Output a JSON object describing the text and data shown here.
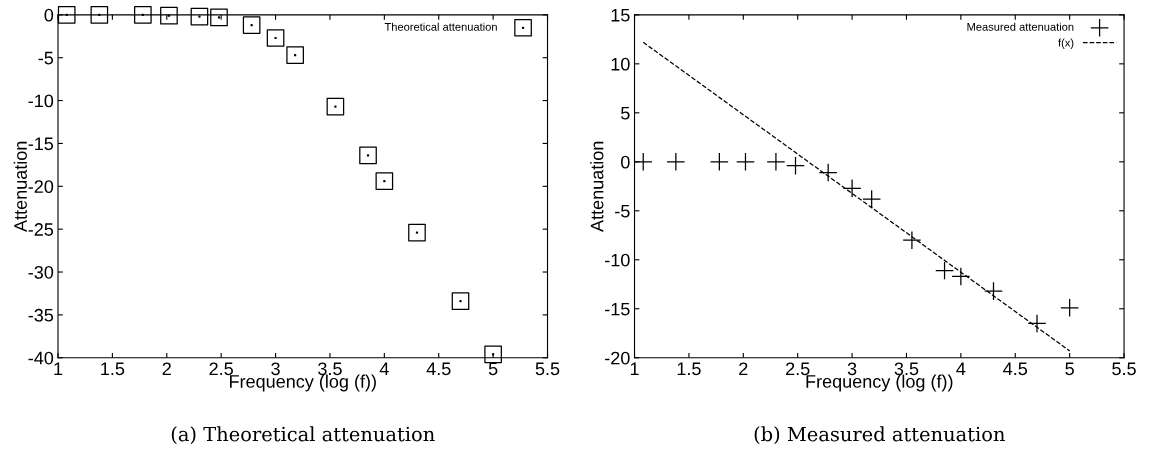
{
  "chart_data": [
    {
      "type": "scatter",
      "xlabel": "Frequency (log (f))",
      "ylabel": "Attenuation",
      "annotations": [
        "(a) Theoretical attenuation"
      ],
      "x": [
        1.08,
        1.38,
        1.78,
        2.02,
        2.3,
        2.48,
        2.78,
        3.0,
        3.18,
        3.55,
        3.85,
        4.0,
        4.3,
        4.7,
        5.0
      ],
      "series": [
        {
          "name": "Theoretical attenuation",
          "color": "#000000",
          "marker": "square",
          "values": [
            0,
            0,
            0,
            -0.1,
            -0.2,
            -0.3,
            -1.2,
            -2.7,
            -4.7,
            -10.7,
            -16.4,
            -19.4,
            -25.4,
            -33.4,
            -39.6
          ]
        }
      ],
      "xlim": [
        1,
        5.5
      ],
      "xticks": [
        1,
        1.5,
        2,
        2.5,
        3,
        3.5,
        4,
        4.5,
        5,
        5.5
      ],
      "ylim": [
        -40,
        0
      ],
      "yticks": [
        -40,
        -35,
        -30,
        -25,
        -20,
        -15,
        -10,
        -5,
        0
      ],
      "grid": false,
      "legend": "top right"
    },
    {
      "type": "scatter",
      "xlabel": "Frequency (log (f))",
      "ylabel": "Attenuation",
      "annotations": [
        "(b) Measured attenuation"
      ],
      "x": [
        1.08,
        1.38,
        1.78,
        2.02,
        2.3,
        2.48,
        2.78,
        3.0,
        3.18,
        3.55,
        3.85,
        4.0,
        4.3,
        4.7,
        5.0
      ],
      "series": [
        {
          "name": "Measured attenuation",
          "color": "#000000",
          "marker": "cross",
          "values": [
            0,
            0,
            0,
            0,
            0,
            -0.4,
            -1.1,
            -2.7,
            -3.8,
            -8,
            -11.1,
            -11.7,
            -13.2,
            -16.5,
            -14.9
          ]
        },
        {
          "name": "f(x)",
          "type": "line",
          "color": "#000000",
          "line_style": "dashed",
          "x": [
            1.08,
            5.0
          ],
          "values": [
            12.2,
            -19.3
          ]
        }
      ],
      "xlim": [
        1,
        5.5
      ],
      "xticks": [
        1,
        1.5,
        2,
        2.5,
        3,
        3.5,
        4,
        4.5,
        5,
        5.5
      ],
      "ylim": [
        -20,
        15
      ],
      "yticks": [
        -20,
        -15,
        -10,
        -5,
        0,
        5,
        10,
        15
      ],
      "grid": false,
      "legend": "top right"
    }
  ]
}
